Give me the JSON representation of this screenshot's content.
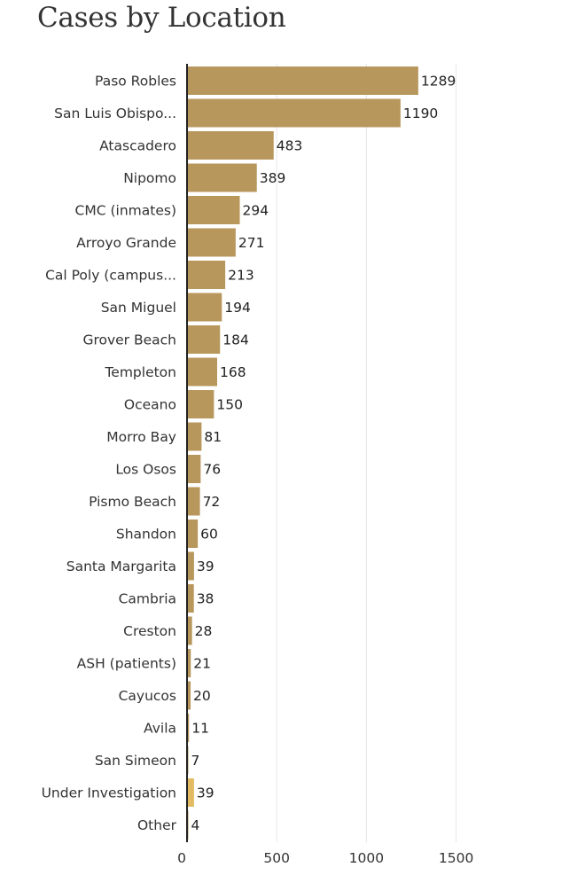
{
  "chart_data": {
    "type": "bar",
    "orientation": "horizontal",
    "title": "Cases by Location",
    "categories": [
      "Paso Robles",
      "San Luis Obispo...",
      "Atascadero",
      "Nipomo",
      "CMC (inmates)",
      "Arroyo Grande",
      "Cal Poly (campus...",
      "San Miguel",
      "Grover Beach",
      "Templeton",
      "Oceano",
      "Morro Bay",
      "Los Osos",
      "Pismo Beach",
      "Shandon",
      "Santa Margarita",
      "Cambria",
      "Creston",
      "ASH (patients)",
      "Cayucos",
      "Avila",
      "San Simeon",
      "Under Investigation",
      "Other"
    ],
    "values": [
      1289,
      1190,
      483,
      389,
      294,
      271,
      213,
      194,
      184,
      168,
      150,
      81,
      76,
      72,
      60,
      39,
      38,
      28,
      21,
      20,
      11,
      7,
      39,
      4
    ],
    "highlighted": [
      "Under Investigation"
    ],
    "xlim": [
      0,
      1500
    ],
    "xticks": [
      0,
      500,
      1000,
      1500
    ],
    "xtick_labels": [
      "0",
      "500",
      "1000",
      "1500"
    ],
    "grid": true,
    "colors": {
      "bar": "#b8975c",
      "highlight": "#e2bb62",
      "axis": "#222222",
      "grid": "#e6e6e6"
    }
  }
}
